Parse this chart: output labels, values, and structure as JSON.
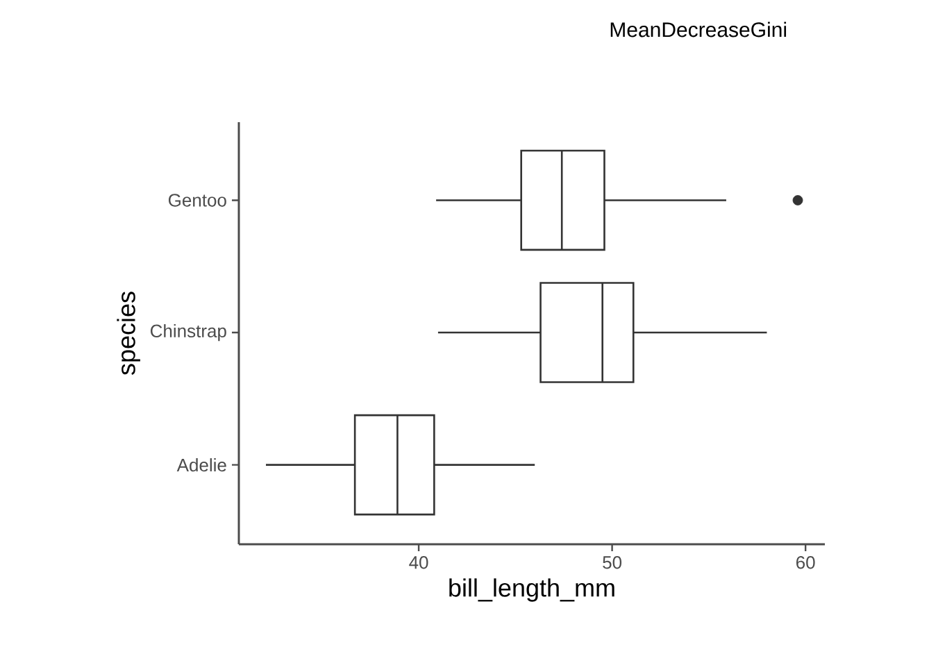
{
  "chart_data": {
    "type": "box",
    "orientation": "horizontal",
    "title": "MeanDecreaseGini",
    "xlabel": "bill_length_mm",
    "ylabel": "species",
    "categories": [
      "Gentoo",
      "Chinstrap",
      "Adelie"
    ],
    "boxes": [
      {
        "low": 40.9,
        "q1": 45.3,
        "median": 47.4,
        "q3": 49.6,
        "high": 55.9,
        "outliers": [
          59.6
        ]
      },
      {
        "low": 41.0,
        "q1": 46.3,
        "median": 49.5,
        "q3": 51.1,
        "high": 58.0
      },
      {
        "low": 32.1,
        "q1": 36.7,
        "median": 38.9,
        "q3": 40.8,
        "high": 46.0
      }
    ],
    "color": "#333333",
    "xlim": [
      30.7,
      61.0
    ],
    "xticks": [
      40,
      50,
      60
    ]
  }
}
